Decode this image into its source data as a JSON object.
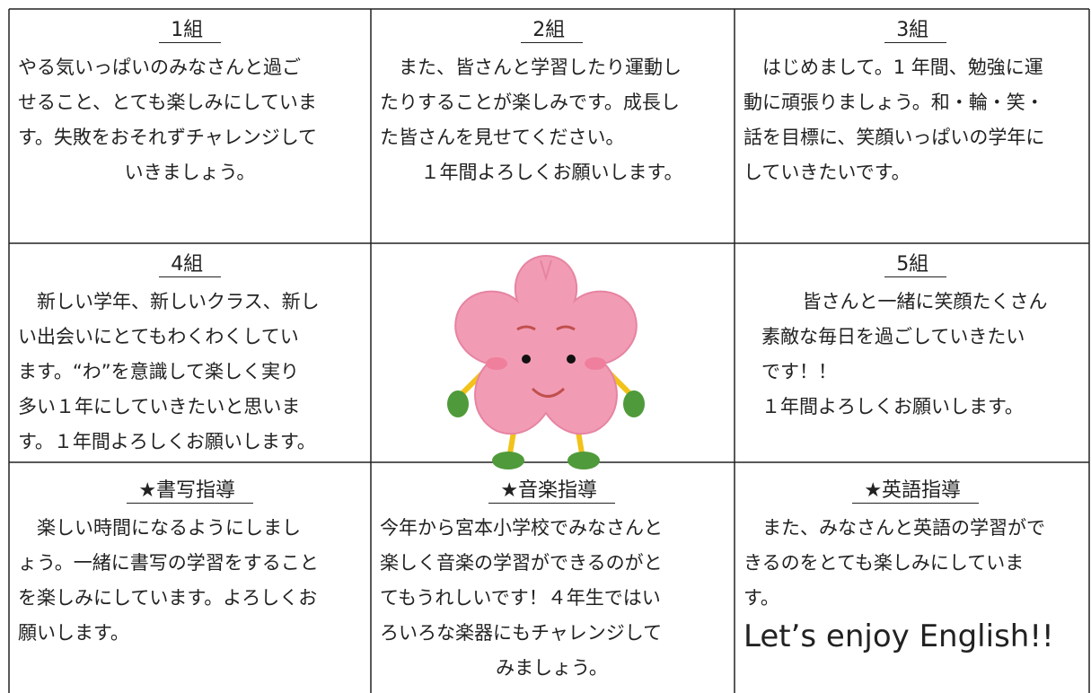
{
  "cells": [
    {
      "title": "1組",
      "lines": [
        "やる気いっぱいのみなさんと過ご",
        "せること、とても楽しみにしていま",
        "す。失敗をおそれずチャレンジして",
        "いきましょう。"
      ]
    },
    {
      "title": "2組",
      "lines": [
        "　また、皆さんと学習したり運動し",
        "たりすることが楽しみです。成長し",
        "た皆さんを見せてください。",
        "１年間よろしくお願いします。"
      ]
    },
    {
      "title": "3組",
      "lines": [
        "　はじめまして。1 年間、勉強に運",
        "動に頑張りましょう。和・輪・笑・",
        "話を目標に、笑顔いっぱいの学年に",
        "していきたいです。"
      ]
    },
    {
      "title": "4組",
      "lines": [
        "　新しい学年、新しいクラス、新し",
        "い出会いにとてもわくわくしてい",
        "ます。“わ”を意識して楽しく実り",
        "多い１年にしていきたいと思いま",
        "す。１年間よろしくお願いします。"
      ]
    },
    {
      "title": "5組",
      "lines": [
        "　皆さんと一緒に笑顔たくさん",
        "素敵な毎日を過ごしていきたい",
        "です！！",
        "１年間よろしくお願いします。"
      ]
    },
    {
      "title": "★書写指導",
      "lines": [
        "　楽しい時間になるようにしまし",
        "ょう。一緒に書写の学習をすること",
        "を楽しみにしています。よろしくお",
        "願いします。"
      ]
    },
    {
      "title": "★音楽指導",
      "lines": [
        "今年から宮本小学校でみなさんと",
        "楽しく音楽の学習ができるのがと",
        "てもうれしいです！４年生ではい",
        "ろいろな楽器にもチャレンジして",
        "みましょう。"
      ]
    },
    {
      "title": "★英語指導",
      "lines": [
        "　また、みなさんと英語の学習がで",
        "きるのをとても楽しみにしていま",
        "す。",
        "Let’s enjoy English!!"
      ]
    }
  ]
}
